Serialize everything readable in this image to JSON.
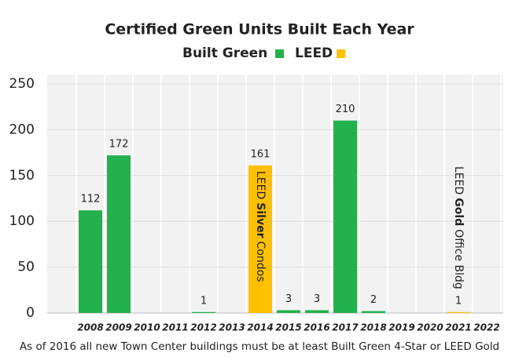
{
  "chart_data": {
    "type": "bar",
    "title": "Certified Green Units Built Each Year",
    "categories": [
      "2008",
      "2009",
      "2010",
      "2011",
      "2012",
      "2013",
      "2014",
      "2015",
      "2016",
      "2017",
      "2018",
      "2019",
      "2020",
      "2021",
      "2022"
    ],
    "series": [
      {
        "name": "Built Green",
        "color": "#22b14c",
        "values": [
          112,
          172,
          null,
          null,
          1,
          null,
          null,
          3,
          3,
          210,
          2,
          null,
          null,
          null,
          null
        ]
      },
      {
        "name": "LEED",
        "color": "#ffc000",
        "values": [
          null,
          null,
          null,
          null,
          null,
          null,
          161,
          null,
          null,
          null,
          null,
          null,
          null,
          1,
          null
        ]
      }
    ],
    "ylim": [
      0,
      250
    ],
    "yticks": [
      0,
      50,
      100,
      150,
      200,
      250
    ],
    "grid": true,
    "annotations": [
      {
        "category": "2014",
        "parts": [
          "LEED",
          "Silver",
          "Condos"
        ]
      },
      {
        "category": "2021",
        "parts": [
          "LEED",
          "Gold",
          "Office Bldg"
        ]
      }
    ],
    "footnote": "As of 2016 all new Town Center buildings must be at least Built Green 4-Star or LEED Gold"
  }
}
